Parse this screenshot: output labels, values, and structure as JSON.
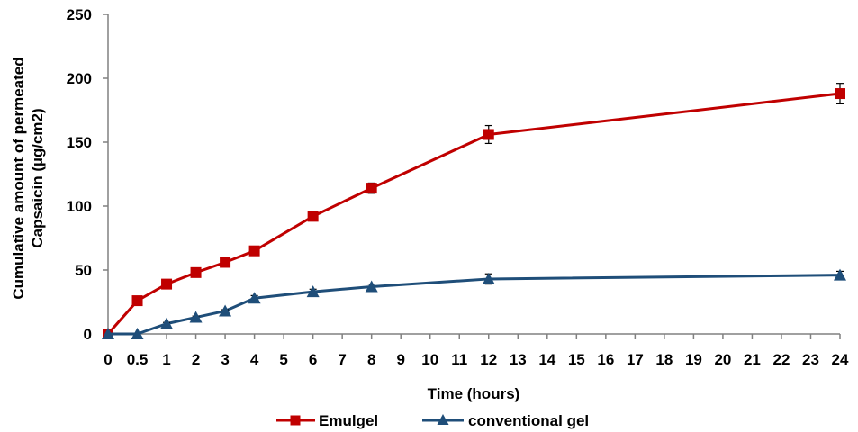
{
  "chart_data": {
    "type": "line",
    "title": "",
    "xlabel": "Time (hours)",
    "ylabel_line1": "Cumulative amount of permeated",
    "ylabel_line2": "Capsaicin (µg/cm2)",
    "ylim": [
      0,
      250
    ],
    "yticks": [
      0,
      50,
      100,
      150,
      200,
      250
    ],
    "x_categories": [
      "0",
      "0.5",
      "1",
      "2",
      "3",
      "4",
      "5",
      "6",
      "7",
      "8",
      "9",
      "10",
      "11",
      "12",
      "13",
      "14",
      "15",
      "16",
      "17",
      "18",
      "19",
      "20",
      "21",
      "22",
      "23",
      "24"
    ],
    "legend_position": "bottom",
    "series": [
      {
        "name": "Emulgel",
        "color": "#c00000",
        "marker": "square",
        "x": [
          "0",
          "0.5",
          "1",
          "2",
          "3",
          "4",
          "6",
          "8",
          "12",
          "24"
        ],
        "values": [
          0,
          26,
          39,
          48,
          56,
          65,
          92,
          114,
          156,
          188
        ],
        "errors": [
          0,
          2,
          2,
          2,
          2,
          2,
          3,
          4,
          7,
          8
        ]
      },
      {
        "name": "conventional gel",
        "color": "#1f4e79",
        "marker": "triangle",
        "x": [
          "0",
          "0.5",
          "1",
          "2",
          "3",
          "4",
          "6",
          "8",
          "12",
          "24"
        ],
        "values": [
          0,
          0,
          8,
          13,
          18,
          28,
          33,
          37,
          43,
          46
        ],
        "errors": [
          0,
          0,
          1,
          1,
          1,
          2,
          2,
          2,
          4,
          3
        ]
      }
    ]
  }
}
